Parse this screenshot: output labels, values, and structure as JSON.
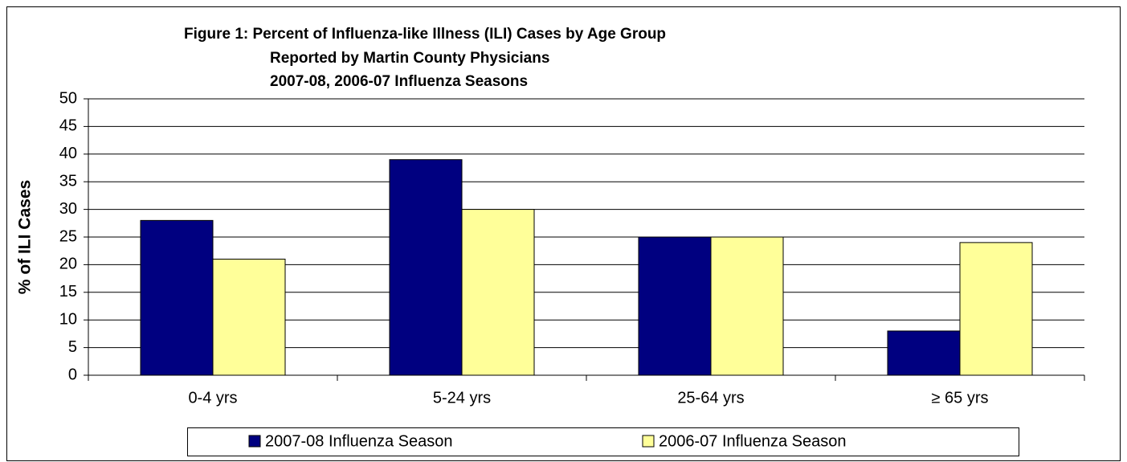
{
  "chart_data": {
    "type": "bar",
    "title": [
      "Figure 1:  Percent of Influenza-like Illness (ILI) Cases by Age Group",
      "Reported by Martin County Physicians",
      "2007-08, 2006-07 Influenza Seasons"
    ],
    "y_label": "% of ILI Cases",
    "categories": [
      "0-4 yrs",
      "5-24 yrs",
      "25-64 yrs",
      "≥ 65 yrs"
    ],
    "series": [
      {
        "name": "2007-08 Influenza Season",
        "color": "#000080",
        "values": [
          28,
          39,
          25,
          8
        ]
      },
      {
        "name": "2006-07 Influenza Season",
        "color": "#ffff99",
        "values": [
          21,
          30,
          25,
          24
        ]
      }
    ],
    "ylim": [
      0,
      50
    ],
    "yticks": [
      0,
      5,
      10,
      15,
      20,
      25,
      30,
      35,
      40,
      45,
      50
    ],
    "grid": true,
    "legend": "bottom"
  }
}
